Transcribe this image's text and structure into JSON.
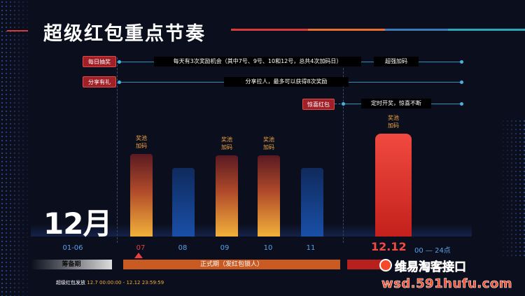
{
  "title": "超级红包重点节奏",
  "rows": {
    "daily": {
      "tag": "每日抽奖",
      "text": "每天有3次奖励机会（其中7号、9号、10和12号，总共4次加码日）",
      "extra": "超强加码"
    },
    "share": {
      "tag": "分享有礼",
      "text": "分享拉人，最多可以获得8次奖励"
    },
    "surprise": {
      "tag": "惊喜红包",
      "text": "定时开奖，惊喜不断"
    }
  },
  "bar_label": "奖池加码",
  "bar_label_line1": "奖池",
  "bar_label_line2": "加码",
  "month": "12月",
  "chart_data": {
    "type": "bar",
    "categories": [
      "07",
      "08",
      "09",
      "10",
      "11",
      "12.12"
    ],
    "values": [
      120,
      100,
      118,
      118,
      100,
      150
    ],
    "bonus_days": [
      "07",
      "09",
      "10",
      "12.12"
    ],
    "colors": {
      "bonus": "#f2b13a",
      "normal": "#1a4fa8",
      "finale": "#e8322a"
    }
  },
  "xaxis": {
    "pre": "01-06",
    "days": [
      "07",
      "08",
      "09",
      "10",
      "11"
    ],
    "final": "12.12",
    "final_hours": "00 — 24点"
  },
  "phases": {
    "prep": "筹备期",
    "official": "正式期（发红包锁人）"
  },
  "footer": {
    "label": "超级红包发放",
    "value": "12.7 00:00:00 - 12.12 23:59:59"
  },
  "watermark": {
    "name": "维易淘客接口",
    "url": "wsd.591hufu.com"
  },
  "accent_colors": {
    "red": "#d83a3a",
    "orange": "#e8702a",
    "teal": "#2aa8b8",
    "blue": "#2f8fb8"
  }
}
